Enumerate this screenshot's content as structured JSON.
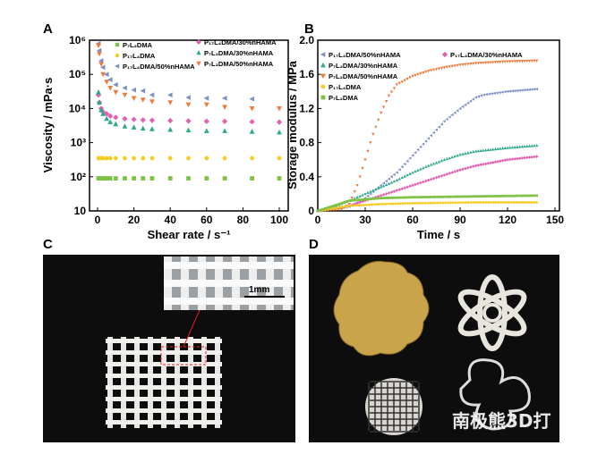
{
  "panels": {
    "a": "A",
    "b": "B",
    "c": "C",
    "d": "D"
  },
  "colors": {
    "P7L2DMA": "#7dc242",
    "P17L4DMA": "#f5cc22",
    "P17L4DMA/50%nHAMA": "#7d8fc8",
    "P17L4DMA/30%nHAMA": "#e062b0",
    "P7L2DMA/30%nHAMA": "#2ba98a",
    "P7L2DMA/50%nHAMA": "#f07a3c"
  },
  "chart_data": [
    {
      "type": "scatter",
      "xlabel": "Shear rate / s⁻¹",
      "ylabel": "Viscosity / mPa·s",
      "xlim": [
        -5,
        105
      ],
      "ylim": [
        10,
        1000000
      ],
      "yscale": "log",
      "xticks": [
        "0",
        "20",
        "40",
        "60",
        "80",
        "100"
      ],
      "yticks": [
        "10",
        "10²",
        "10³",
        "10⁴",
        "10⁵",
        "10⁶"
      ],
      "legend": "top",
      "x": [
        0.5,
        1,
        2,
        3,
        5,
        7,
        10,
        15,
        20,
        25,
        30,
        40,
        50,
        60,
        70,
        85,
        100
      ],
      "series": [
        {
          "name": "P7L2DMA",
          "label": "P₇L₂DMA",
          "marker": "square",
          "values": [
            90,
            90,
            90,
            90,
            90,
            90,
            90,
            90,
            90,
            90,
            90,
            90,
            90,
            90,
            90,
            90,
            90
          ]
        },
        {
          "name": "P17L4DMA",
          "label": "P₁₇L₄DMA",
          "marker": "circle",
          "values": [
            350,
            350,
            350,
            350,
            350,
            350,
            350,
            350,
            350,
            350,
            350,
            350,
            350,
            350,
            350,
            350,
            350
          ]
        },
        {
          "name": "P17L4DMA/50%nHAMA",
          "label": "P₁₇L₄DMA/50%nHAMA",
          "marker": "tri-left",
          "values": [
            800000,
            500000,
            250000,
            160000,
            100000,
            70000,
            50000,
            40000,
            35000,
            33000,
            25000,
            25000,
            21000,
            20000,
            20000,
            19000,
            null
          ]
        },
        {
          "name": "P17L4DMA/30%nHAMA",
          "label": "P₁₇L₄DMA/30%nHAMA",
          "marker": "diamond",
          "values": [
            25000,
            15000,
            10000,
            8000,
            7000,
            6000,
            5500,
            5000,
            4800,
            4600,
            4500,
            4400,
            4300,
            4200,
            4200,
            4100,
            4000
          ]
        },
        {
          "name": "P7L2DMA/30%nHAMA",
          "label": "P₇L₂DMA/30%nHAMA",
          "marker": "tri-up",
          "values": [
            30000,
            15000,
            9000,
            7000,
            5000,
            4000,
            3500,
            3000,
            2800,
            2600,
            2500,
            2400,
            2300,
            2200,
            2200,
            2100,
            2000
          ]
        },
        {
          "name": "P7L2DMA/50%nHAMA",
          "label": "P₇L₂DMA/50%nHAMA",
          "marker": "tri-down",
          "values": [
            700000,
            400000,
            200000,
            100000,
            60000,
            40000,
            30000,
            25000,
            20000,
            18000,
            16000,
            15000,
            13000,
            13000,
            11000,
            10000,
            10000
          ]
        }
      ]
    },
    {
      "type": "line",
      "xlabel": "Time / s",
      "ylabel": "Storage modulus / MPa",
      "xlim": [
        0,
        150
      ],
      "ylim": [
        0,
        2.0
      ],
      "xticks": [
        "0",
        "30",
        "60",
        "90",
        "120",
        "150"
      ],
      "yticks": [
        "0",
        "0.4",
        "0.8",
        "1.2",
        "1.6",
        "2.0"
      ],
      "legend": "top-left",
      "series": [
        {
          "name": "P17L4DMA/50%nHAMA",
          "label": "P₁₇L₄DMA/50%nHAMA",
          "marker": "tri-left",
          "points": [
            [
              0,
              0
            ],
            [
              20,
              0.05
            ],
            [
              30,
              0.15
            ],
            [
              40,
              0.3
            ],
            [
              50,
              0.45
            ],
            [
              60,
              0.65
            ],
            [
              70,
              0.85
            ],
            [
              80,
              1.05
            ],
            [
              90,
              1.2
            ],
            [
              100,
              1.33
            ],
            [
              105,
              1.36
            ],
            [
              120,
              1.4
            ],
            [
              140,
              1.43
            ]
          ]
        },
        {
          "name": "P17L4DMA/30%nHAMA",
          "label": "P₁₇L₄DMA/30%nHAMA",
          "marker": "diamond",
          "points": [
            [
              0,
              0
            ],
            [
              20,
              0.06
            ],
            [
              30,
              0.12
            ],
            [
              40,
              0.18
            ],
            [
              50,
              0.24
            ],
            [
              60,
              0.3
            ],
            [
              70,
              0.36
            ],
            [
              80,
              0.42
            ],
            [
              90,
              0.48
            ],
            [
              100,
              0.53
            ],
            [
              120,
              0.6
            ],
            [
              140,
              0.64
            ]
          ]
        },
        {
          "name": "P7L2DMA/30%nHAMA",
          "label": "P₇L₂DMA/30%nHAMA",
          "marker": "tri-up",
          "points": [
            [
              0,
              0
            ],
            [
              10,
              0.05
            ],
            [
              20,
              0.12
            ],
            [
              30,
              0.2
            ],
            [
              40,
              0.28
            ],
            [
              50,
              0.36
            ],
            [
              60,
              0.45
            ],
            [
              70,
              0.53
            ],
            [
              80,
              0.6
            ],
            [
              90,
              0.66
            ],
            [
              100,
              0.7
            ],
            [
              120,
              0.74
            ],
            [
              140,
              0.77
            ]
          ]
        },
        {
          "name": "P7L2DMA/50%nHAMA",
          "label": "P₇L₂DMA/50%nHAMA",
          "marker": "tri-down",
          "points": [
            [
              0,
              0
            ],
            [
              15,
              0.02
            ],
            [
              20,
              0.08
            ],
            [
              25,
              0.3
            ],
            [
              30,
              0.6
            ],
            [
              35,
              0.9
            ],
            [
              40,
              1.15
            ],
            [
              45,
              1.35
            ],
            [
              50,
              1.48
            ],
            [
              60,
              1.58
            ],
            [
              70,
              1.64
            ],
            [
              80,
              1.68
            ],
            [
              90,
              1.71
            ],
            [
              100,
              1.73
            ],
            [
              120,
              1.75
            ],
            [
              140,
              1.76
            ]
          ]
        },
        {
          "name": "P17L4DMA",
          "label": "P₁₇L₄DMA",
          "marker": "circle",
          "points": [
            [
              0,
              0
            ],
            [
              20,
              0.06
            ],
            [
              40,
              0.08
            ],
            [
              60,
              0.09
            ],
            [
              100,
              0.1
            ],
            [
              140,
              0.1
            ]
          ]
        },
        {
          "name": "P7L2DMA",
          "label": "P₇L₂DMA",
          "marker": "square",
          "points": [
            [
              0,
              0
            ],
            [
              20,
              0.12
            ],
            [
              40,
              0.15
            ],
            [
              60,
              0.16
            ],
            [
              100,
              0.17
            ],
            [
              140,
              0.18
            ]
          ]
        }
      ]
    }
  ],
  "photo_c": {
    "scale_bar": "1mm"
  },
  "watermark": "南极熊3D打"
}
